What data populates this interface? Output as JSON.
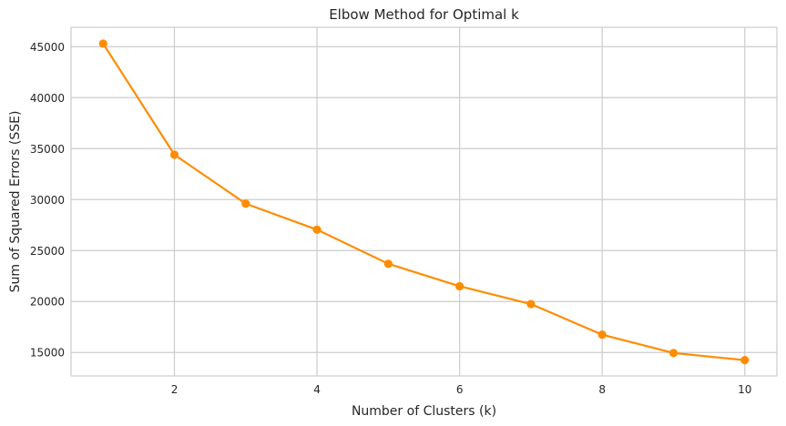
{
  "chart_data": {
    "type": "line",
    "title": "Elbow Method for Optimal k",
    "xlabel": "Number of Clusters (k)",
    "ylabel": "Sum of Squared Errors (SSE)",
    "x": [
      1,
      2,
      3,
      4,
      5,
      6,
      7,
      8,
      9,
      10
    ],
    "series": [
      {
        "values": [
          45300,
          34400,
          29600,
          27050,
          23700,
          21500,
          19750,
          16750,
          14950,
          14250
        ]
      }
    ],
    "xlim": [
      0.55,
      10.45
    ],
    "ylim": [
      12700,
      46900
    ],
    "xticks": [
      2,
      4,
      6,
      8,
      10
    ],
    "yticks": [
      15000,
      20000,
      25000,
      30000,
      35000,
      40000,
      45000
    ],
    "grid": true,
    "legend": "none",
    "colors": {
      "line": "#ff8c00",
      "grid": "#cccccc",
      "spine": "#cccccc",
      "text": "#262626",
      "background": "#ffffff"
    }
  }
}
